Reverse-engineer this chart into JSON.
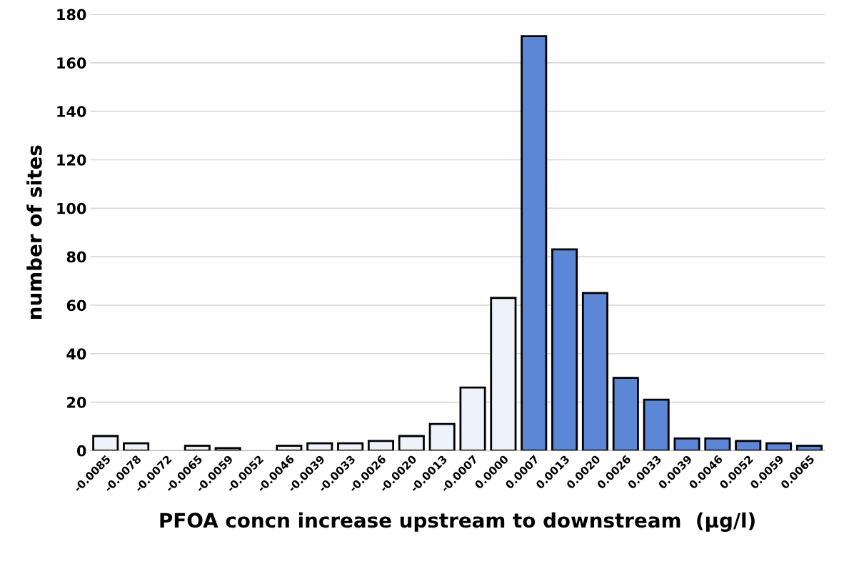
{
  "chart_data": {
    "type": "bar",
    "xlabel": "PFOA concn increase upstream to downstream  (µg/l)",
    "ylabel": "number of sites",
    "categories": [
      "-0.0085",
      "-0.0078",
      "-0.0072",
      "-0.0065",
      "-0.0059",
      "-0.0052",
      "-0.0046",
      "-0.0039",
      "-0.0033",
      "-0.0026",
      "-0.0020",
      "-0.0013",
      "-0.0007",
      "0.0000",
      "0.0007",
      "0.0013",
      "0.0020",
      "0.0026",
      "0.0033",
      "0.0039",
      "0.0046",
      "0.0052",
      "0.0059",
      "0.0065"
    ],
    "values": [
      6,
      3,
      0,
      2,
      1,
      0,
      2,
      3,
      3,
      4,
      6,
      11,
      26,
      63,
      171,
      83,
      65,
      30,
      21,
      5,
      5,
      4,
      3,
      2
    ],
    "colors": [
      "#eef2fa",
      "#eef2fa",
      "#eef2fa",
      "#eef2fa",
      "#eef2fa",
      "#eef2fa",
      "#eef2fa",
      "#eef2fa",
      "#eef2fa",
      "#eef2fa",
      "#eef2fa",
      "#eef2fa",
      "#eef2fa",
      "#eef2fa",
      "#5b87d6",
      "#5b87d6",
      "#5b87d6",
      "#5b87d6",
      "#5b87d6",
      "#5b87d6",
      "#5b87d6",
      "#5b87d6",
      "#5b87d6",
      "#5b87d6"
    ],
    "ylim": [
      0,
      180
    ],
    "yticks": [
      0,
      20,
      40,
      60,
      80,
      100,
      120,
      140,
      160,
      180
    ],
    "grid": "y"
  }
}
